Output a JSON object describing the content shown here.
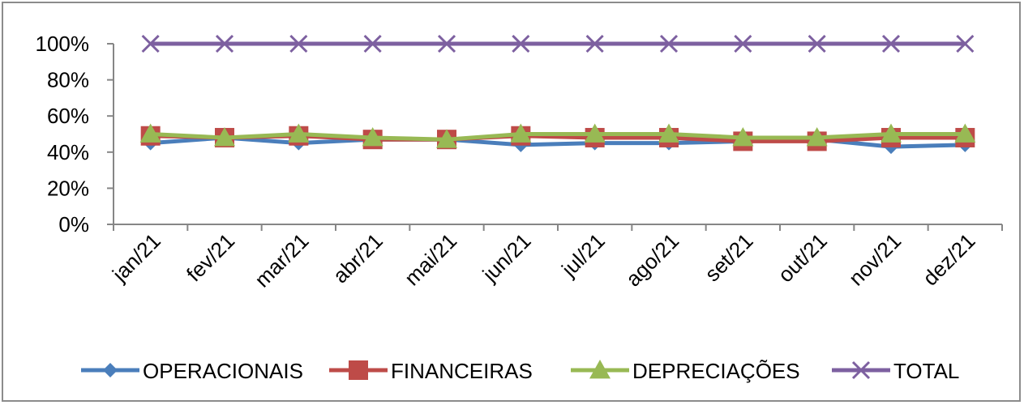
{
  "chart_data": {
    "type": "line",
    "categories": [
      "jan/21",
      "fev/21",
      "mar/21",
      "abr/21",
      "mai/21",
      "jun/21",
      "jul/21",
      "ago/21",
      "set/21",
      "out/21",
      "nov/21",
      "dez/21"
    ],
    "ylim": [
      0,
      100
    ],
    "yticks": [
      "0%",
      "20%",
      "40%",
      "60%",
      "80%",
      "100%"
    ],
    "legend_position": "bottom",
    "series": [
      {
        "name": "OPERACIONAIS",
        "color": "#4a7ebb",
        "marker": "diamond",
        "values": [
          45,
          48,
          45,
          47,
          47,
          44,
          45,
          45,
          46,
          47,
          43,
          44
        ]
      },
      {
        "name": "FINANCEIRAS",
        "color": "#be4b48",
        "marker": "square",
        "values": [
          49,
          48,
          49,
          47,
          47,
          49,
          48,
          48,
          46,
          46,
          48,
          48
        ]
      },
      {
        "name": "DEPRECIAÇÕES",
        "color": "#98b954",
        "marker": "triangle",
        "values": [
          50,
          48,
          50,
          48,
          47,
          50,
          50,
          50,
          48,
          48,
          50,
          50
        ]
      },
      {
        "name": "TOTAL",
        "color": "#7d60a0",
        "marker": "x",
        "values": [
          100,
          100,
          100,
          100,
          100,
          100,
          100,
          100,
          100,
          100,
          100,
          100
        ]
      }
    ]
  }
}
